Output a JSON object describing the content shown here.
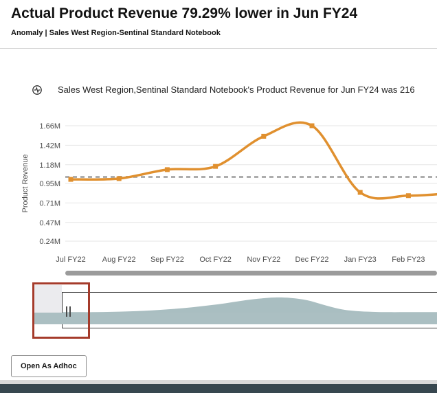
{
  "header": {
    "title": "Actual Product Revenue 79.29% lower in Jun FY24",
    "subtitle": "Anomaly | Sales West Region-Sentinal Standard Notebook"
  },
  "insight": {
    "icon": "anomaly-pulse-icon",
    "text": "Sales West Region,Sentinal Standard Notebook's Product Revenue for Jun FY24 was 216"
  },
  "chart_data": {
    "type": "line",
    "title": "",
    "series_name": "Product Revenue",
    "ylabel": "Product Revenue",
    "xlabel": "",
    "unit": "M",
    "categories": [
      "Jul FY22",
      "Aug FY22",
      "Sep FY22",
      "Oct FY22",
      "Nov FY22",
      "Dec FY22",
      "Jan FY23",
      "Feb FY23"
    ],
    "values": [
      1.0,
      1.01,
      1.12,
      1.16,
      1.53,
      1.66,
      0.84,
      0.8
    ],
    "continuation_value": 0.83,
    "y_tick_labels": [
      "1.66M",
      "1.42M",
      "1.18M",
      "0.95M",
      "0.71M",
      "0.47M",
      "0.24M"
    ],
    "y_tick_values": [
      1.66,
      1.42,
      1.18,
      0.95,
      0.71,
      0.47,
      0.24
    ],
    "ylim": [
      0.24,
      1.66
    ],
    "baseline_value": 1.03,
    "baseline_style": "dashed",
    "grid": "horizontal",
    "legend": "none",
    "marker_shape": "square",
    "line_color": "#E0902F",
    "navigator_profile": [
      0.03,
      0.03,
      0.03,
      0.05,
      0.08,
      0.12,
      0.18,
      0.26,
      0.36,
      0.48,
      0.62,
      0.78,
      0.92,
      1.0,
      0.97,
      0.82,
      0.52,
      0.24,
      0.1,
      0.05,
      0.03,
      0.03,
      0.03,
      0.03
    ]
  },
  "footer": {
    "open_as_adhoc_label": "Open As Adhoc"
  },
  "colors": {
    "accent_orange": "#E0902F",
    "baseline_gray": "#ADADAD",
    "navigator_fill": "#A9BEC1",
    "selection_band": "#ABBFC2",
    "annotation_red": "#A53B2B",
    "scrollbar_gray": "#9B9B9B",
    "footer_bar": "#37474F"
  }
}
